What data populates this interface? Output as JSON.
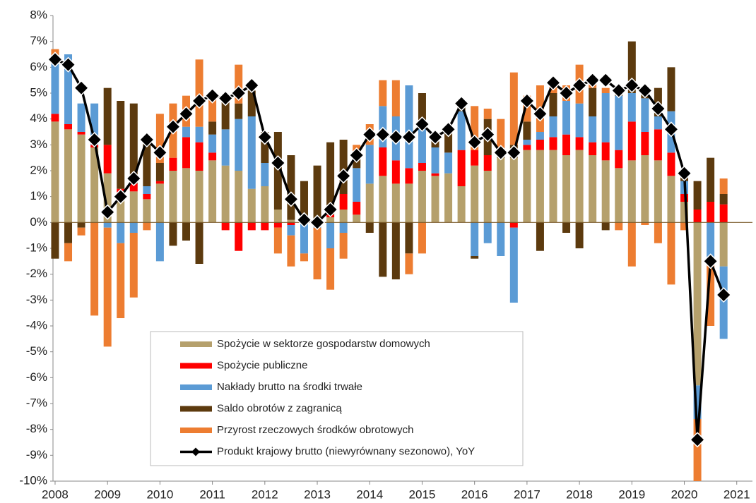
{
  "chart_data": {
    "type": "bar",
    "stacked": true,
    "x": [
      2008,
      2008.25,
      2008.5,
      2008.75,
      2009,
      2009.25,
      2009.5,
      2009.75,
      2010,
      2010.25,
      2010.5,
      2010.75,
      2011,
      2011.25,
      2011.5,
      2011.75,
      2012,
      2012.25,
      2012.5,
      2012.75,
      2013,
      2013.25,
      2013.5,
      2013.75,
      2014,
      2014.25,
      2014.5,
      2014.75,
      2015,
      2015.25,
      2015.5,
      2015.75,
      2016,
      2016.25,
      2016.5,
      2016.75,
      2017,
      2017.25,
      2017.5,
      2017.75,
      2018,
      2018.25,
      2018.5,
      2018.75,
      2019,
      2019.25,
      2019.5,
      2019.75,
      2020,
      2020.25,
      2020.5,
      2020.75
    ],
    "xlim": [
      2007.96,
      2021.3
    ],
    "xticks": [
      2008,
      2009,
      2010,
      2011,
      2012,
      2013,
      2014,
      2015,
      2016,
      2017,
      2018,
      2019,
      2020,
      2021
    ],
    "ylim": [
      -10,
      8
    ],
    "yticks": [
      {
        "value": 8,
        "label": "8%"
      },
      {
        "value": 7,
        "label": "7%"
      },
      {
        "value": 6,
        "label": "6%"
      },
      {
        "value": 5,
        "label": "5%"
      },
      {
        "value": 4,
        "label": "4%"
      },
      {
        "value": 3,
        "label": "3%"
      },
      {
        "value": 2,
        "label": "2%"
      },
      {
        "value": 1,
        "label": "1%"
      },
      {
        "value": 0,
        "label": "0%"
      },
      {
        "value": -1,
        "label": "-1%"
      },
      {
        "value": -2,
        "label": "-2%"
      },
      {
        "value": -3,
        "label": "-3%"
      },
      {
        "value": -4,
        "label": "-4%"
      },
      {
        "value": -5,
        "label": "-5%"
      },
      {
        "value": -6,
        "label": "-6%"
      },
      {
        "value": -7,
        "label": "-7%"
      },
      {
        "value": -8,
        "label": "-8%"
      },
      {
        "value": -9,
        "label": "-9%"
      },
      {
        "value": -10,
        "label": "-10%"
      }
    ],
    "series": [
      {
        "name": "Spożycie w sektorze gospodarstw domowych",
        "color": "#b5a06c",
        "type": "bar",
        "values": [
          3.9,
          3.6,
          3.4,
          2.9,
          1.9,
          1.0,
          1.2,
          0.9,
          1.5,
          2.0,
          2.1,
          2.0,
          2.4,
          2.2,
          2.0,
          1.3,
          1.4,
          0.5,
          0.1,
          0.0,
          0.0,
          0.2,
          0.5,
          0.3,
          1.5,
          1.8,
          1.5,
          1.5,
          2.0,
          1.8,
          1.9,
          1.4,
          2.2,
          2.0,
          2.5,
          2.5,
          2.8,
          2.8,
          2.8,
          2.6,
          2.8,
          2.6,
          2.4,
          2.1,
          2.4,
          2.6,
          2.4,
          1.8,
          0.8,
          -6.3,
          0.0,
          -1.7
        ]
      },
      {
        "name": "Spożycie publiczne",
        "color": "#ff0000",
        "type": "bar",
        "values": [
          0.3,
          0.2,
          0.1,
          0.1,
          1.1,
          0.3,
          0.3,
          0.2,
          0.1,
          0.5,
          1.2,
          1.1,
          0.3,
          -0.3,
          -1.1,
          -0.3,
          -0.3,
          -0.2,
          -0.1,
          0.1,
          0.0,
          0.1,
          0.6,
          0.5,
          0.0,
          1.1,
          0.9,
          0.6,
          0.3,
          0.1,
          0.0,
          1.4,
          0.6,
          0.6,
          0.0,
          -0.2,
          0.2,
          0.4,
          0.5,
          0.8,
          0.5,
          0.5,
          0.7,
          0.7,
          1.5,
          0.9,
          1.2,
          0.9,
          0.3,
          0.5,
          0.8,
          0.7
        ]
      },
      {
        "name": "Nakłady brutto na środki trwałe",
        "color": "#5b9bd5",
        "type": "bar",
        "values": [
          2.0,
          2.7,
          1.1,
          1.6,
          -0.2,
          -0.8,
          -0.4,
          0.3,
          -1.5,
          0.0,
          0.4,
          0.6,
          0.7,
          1.4,
          2.0,
          2.8,
          0.9,
          0.0,
          -0.4,
          -1.2,
          -0.2,
          -1.0,
          -0.4,
          1.3,
          1.5,
          1.6,
          1.7,
          3.2,
          1.6,
          1.0,
          0.8,
          1.5,
          -1.3,
          -0.8,
          -1.3,
          -2.9,
          0.2,
          0.3,
          0.8,
          1.3,
          1.3,
          1.0,
          1.9,
          2.1,
          1.1,
          1.3,
          0.5,
          1.6,
          0.5,
          -1.3,
          -1.5,
          -2.8
        ]
      },
      {
        "name": "Saldo obrotów z zagranicą",
        "color": "#5c3a0e",
        "type": "bar",
        "values": [
          -1.4,
          -0.8,
          -0.2,
          0.0,
          2.2,
          3.4,
          3.1,
          1.8,
          0.7,
          -0.9,
          -0.7,
          -1.6,
          0.5,
          1.2,
          0.6,
          1.0,
          1.2,
          3.0,
          2.5,
          1.5,
          2.2,
          2.8,
          2.1,
          0.6,
          -0.4,
          -2.1,
          -2.2,
          -1.2,
          1.1,
          0.4,
          0.9,
          0.3,
          -0.1,
          1.4,
          0.3,
          0.5,
          0.7,
          -1.1,
          0.9,
          -0.4,
          -1.0,
          1.1,
          -0.3,
          0.3,
          2.0,
          0.3,
          1.1,
          1.7,
          0.3,
          1.1,
          1.7,
          0.4
        ]
      },
      {
        "name": "Przyrost rzeczowych środków obrotowych",
        "color": "#ed7d31",
        "type": "bar",
        "values": [
          0.5,
          -0.7,
          -0.3,
          -3.6,
          -4.6,
          -2.9,
          -2.5,
          -0.3,
          1.9,
          2.1,
          1.2,
          2.6,
          1.0,
          0.0,
          1.5,
          0.0,
          0.0,
          -1.0,
          -1.2,
          -0.3,
          -2.0,
          -1.6,
          -1.0,
          0.3,
          0.8,
          1.0,
          1.4,
          -0.8,
          -1.2,
          0.0,
          0.0,
          0.0,
          1.7,
          0.4,
          1.2,
          2.8,
          1.0,
          1.8,
          0.5,
          0.6,
          1.5,
          0.3,
          0.2,
          -0.3,
          -1.7,
          -0.1,
          -0.8,
          -2.4,
          -0.3,
          -2.4,
          -2.5,
          0.6
        ]
      },
      {
        "name": "Produkt krajowy brutto (niewyrównany sezonowo), YoY",
        "color": "#000000",
        "type": "line",
        "values": [
          6.3,
          6.1,
          5.2,
          3.2,
          0.4,
          1.0,
          1.7,
          3.2,
          2.7,
          3.7,
          4.2,
          4.7,
          4.9,
          4.8,
          5.0,
          5.3,
          3.3,
          2.3,
          0.9,
          0.1,
          0.0,
          0.5,
          1.8,
          2.6,
          3.4,
          3.4,
          3.3,
          3.3,
          3.8,
          3.3,
          3.6,
          4.6,
          3.1,
          3.4,
          2.7,
          2.7,
          4.7,
          4.2,
          5.4,
          5.0,
          5.3,
          5.5,
          5.5,
          5.1,
          5.3,
          5.1,
          4.4,
          3.6,
          1.9,
          -8.4,
          -1.5,
          -2.8
        ]
      }
    ],
    "legend": "bottom-center"
  }
}
